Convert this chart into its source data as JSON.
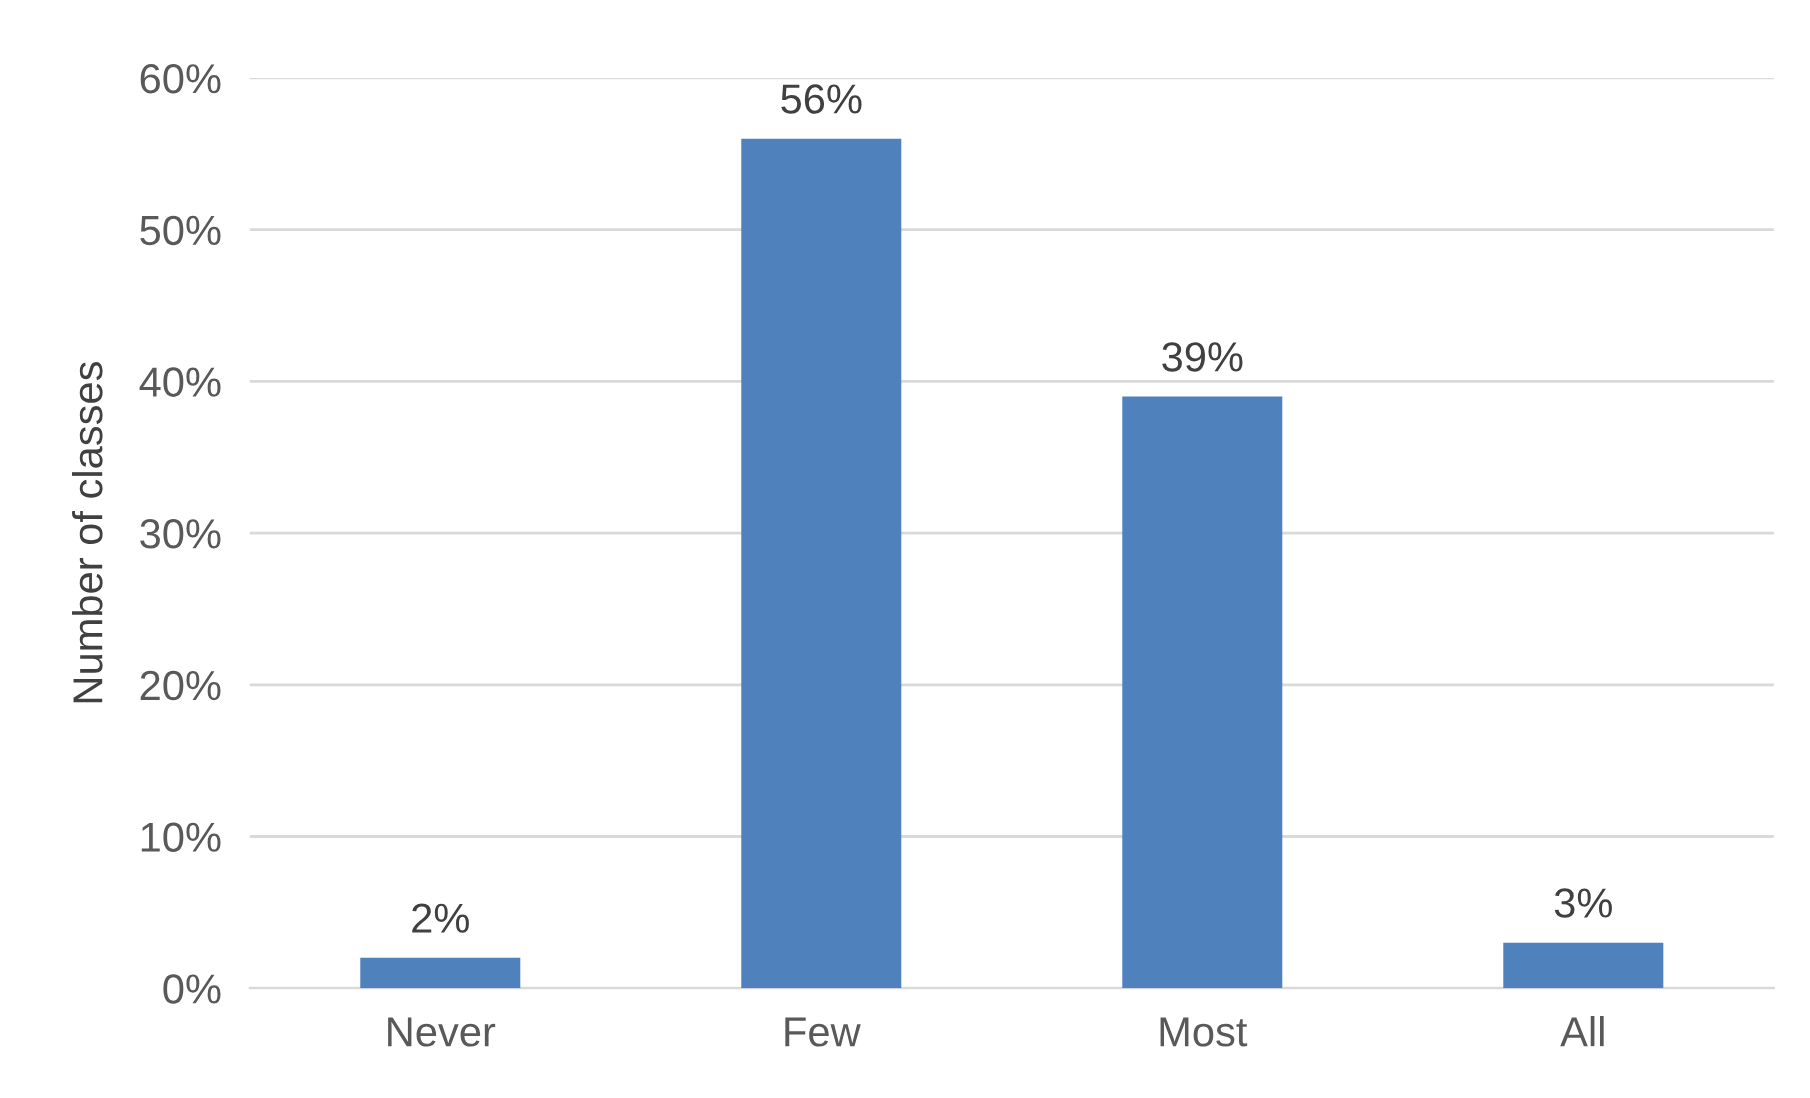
{
  "chart_data": {
    "type": "bar",
    "ylabel": "Number of classes",
    "categories": [
      "Never",
      "Few",
      "Most",
      "All"
    ],
    "values": [
      2,
      56,
      39,
      3
    ],
    "color": "#4f81bd",
    "value_labels": [
      "2%",
      "56%",
      "39%",
      "3%"
    ],
    "ylim": [
      0,
      60
    ],
    "yticks": [
      {
        "value": 0,
        "label": "0%"
      },
      {
        "value": 10,
        "label": "10%"
      },
      {
        "value": 20,
        "label": "20%"
      },
      {
        "value": 30,
        "label": "30%"
      },
      {
        "value": 40,
        "label": "40%"
      },
      {
        "value": 50,
        "label": "50%"
      },
      {
        "value": 60,
        "label": "60%"
      }
    ],
    "grid": "y",
    "legend": false
  }
}
